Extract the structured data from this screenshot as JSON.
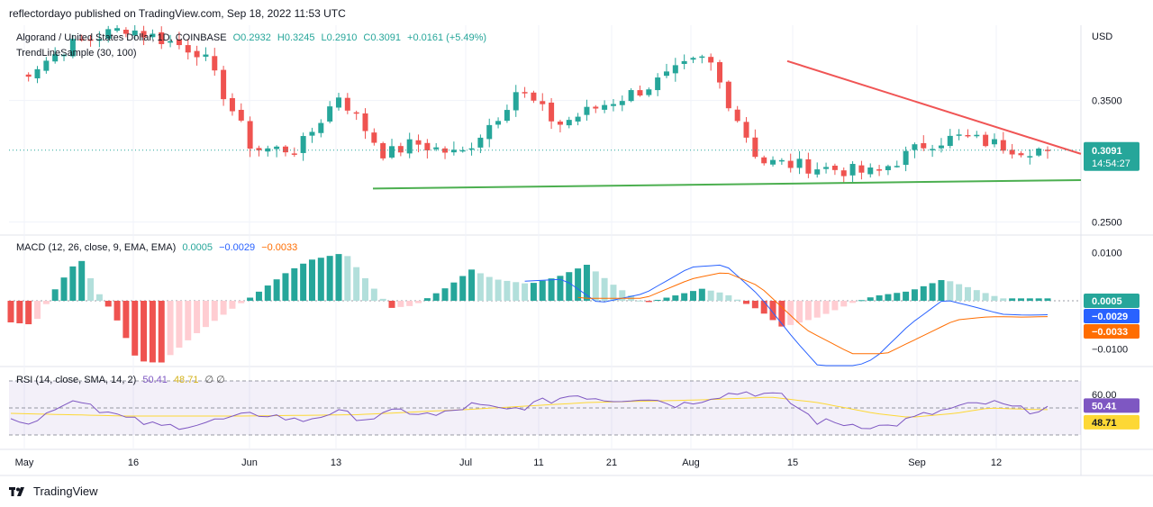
{
  "header": {
    "published_by": "reflectordayo published on TradingView.com, Sep 18, 2022 11:53 UTC"
  },
  "main_legend": {
    "symbol": "Algorand / United States Dollar, 1D, COINBASE",
    "open": "O0.2932",
    "high": "H0.3245",
    "low": "L0.2910",
    "close": "C0.3091",
    "change": "+0.0161 (+5.49%)",
    "indicator": "TrendLineSample (30, 100)"
  },
  "macd_legend": {
    "title": "MACD (12, 26, close, 9, EMA, EMA)",
    "hist": "0.0005",
    "macd": "−0.0029",
    "signal": "−0.0033"
  },
  "rsi_legend": {
    "title": "RSI (14, close, SMA, 14, 2)",
    "rsi": "50.41",
    "rsi_ma": "48.71",
    "extra": "∅ ∅"
  },
  "price_axis": {
    "currency": "USD",
    "ticks": [
      "0.3500",
      "0.2500"
    ],
    "last_price": "0.3091",
    "countdown": "14:54:27"
  },
  "macd_axis": {
    "ticks": [
      "0.0100",
      "−0.0100"
    ],
    "hist_badge": "0.0005",
    "macd_badge": "−0.0029",
    "signal_badge": "−0.0033"
  },
  "rsi_axis": {
    "ticks": [
      "60.00"
    ],
    "rsi_badge": "50.41",
    "ma_badge": "48.71"
  },
  "time_axis": [
    "May",
    "16",
    "Jun",
    "13",
    "Jul",
    "11",
    "21",
    "Aug",
    "15",
    "Sep",
    "12"
  ],
  "footer": {
    "brand": "TradingView"
  },
  "colors": {
    "up": "#26a69a",
    "down": "#ef5350",
    "hist_light_up": "#b2dfdb",
    "hist_light_down": "#ffcdd2",
    "macd_line": "#2962ff",
    "signal_line": "#ff6d00",
    "rsi_line": "#7e57c2",
    "rsi_ma": "#fdd835",
    "resistance": "#f05555",
    "support": "#4caf50"
  },
  "chart_data": {
    "type": "candlestick",
    "title": "Algorand / United States Dollar, 1D, COINBASE",
    "ylabel": "USD",
    "ylim": [
      0.24,
      0.412
    ],
    "last_close": 0.3091,
    "trendlines": [
      {
        "name": "resistance",
        "from": [
          "Aug 13",
          0.3825
        ],
        "to": [
          "Sep 18",
          0.312
        ]
      },
      {
        "name": "support",
        "from": [
          "Jun 16",
          0.2775
        ],
        "to": [
          "Sep 18",
          0.2845
        ]
      }
    ],
    "macd": {
      "histogram_last": 0.0005,
      "macd_last": -0.0029,
      "signal_last": -0.0033,
      "ylim": [
        -0.0135,
        0.0135
      ]
    },
    "rsi": {
      "rsi_last": 50.41,
      "ma_last": 48.71,
      "ylim": [
        20,
        80
      ],
      "band": [
        30,
        70
      ]
    }
  }
}
